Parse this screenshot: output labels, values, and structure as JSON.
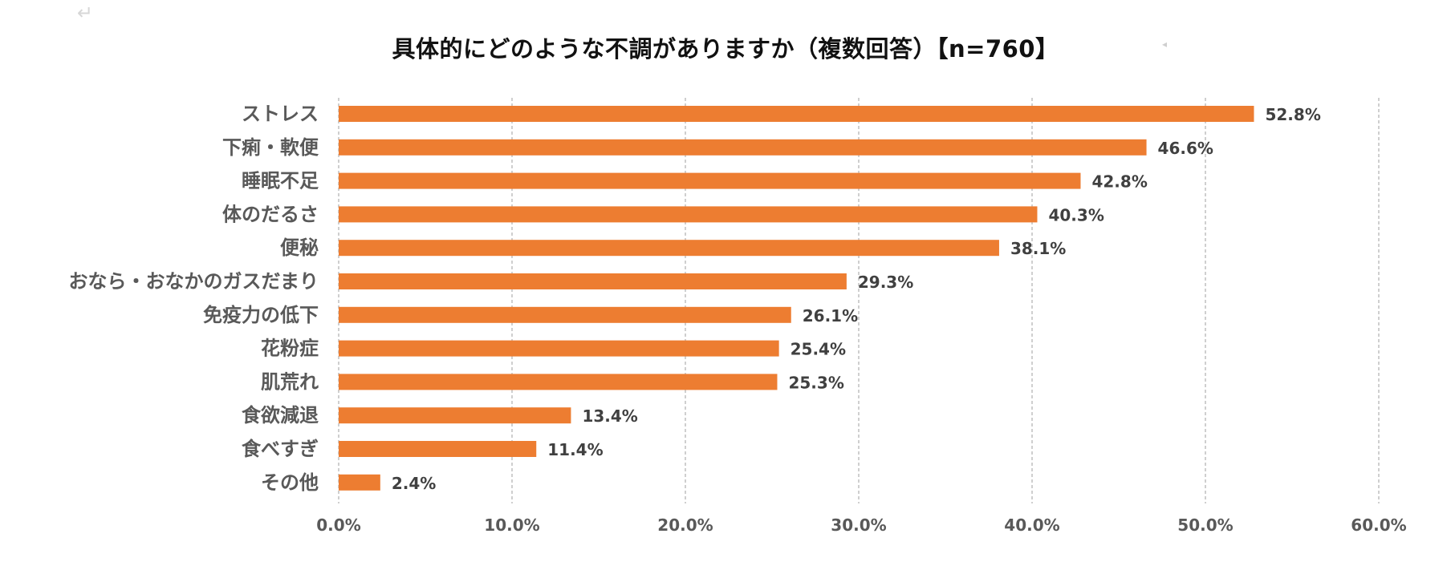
{
  "chart_data": {
    "type": "bar",
    "orientation": "horizontal",
    "title": "具体的にどのような不調がありますか（複数回答）【n=760】",
    "categories": [
      "ストレス",
      "下痢・軟便",
      "睡眠不足",
      "体のだるさ",
      "便秘",
      "おなら・おなかのガスだまり",
      "免疫力の低下",
      "花粉症",
      "肌荒れ",
      "食欲減退",
      "食べすぎ",
      "その他"
    ],
    "values": [
      52.8,
      46.6,
      42.8,
      40.3,
      38.1,
      29.3,
      26.1,
      25.4,
      25.3,
      13.4,
      11.4,
      2.4
    ],
    "value_labels": [
      "52.8%",
      "46.6%",
      "42.8%",
      "40.3%",
      "38.1%",
      "29.3%",
      "26.1%",
      "25.4%",
      "25.3%",
      "13.4%",
      "11.4%",
      "2.4%"
    ],
    "x_ticks": [
      0,
      10,
      20,
      30,
      40,
      50,
      60
    ],
    "x_tick_labels": [
      "0.0%",
      "10.0%",
      "20.0%",
      "30.0%",
      "40.0%",
      "50.0%",
      "60.0%"
    ],
    "xlim": [
      0,
      60
    ],
    "xlabel": "",
    "ylabel": "",
    "grid": "vertical dashed",
    "legend": "none",
    "bar_color": "#ED7D31",
    "grid_color": "#BFBFBF",
    "label_color": "#595959",
    "value_color": "#404040"
  }
}
